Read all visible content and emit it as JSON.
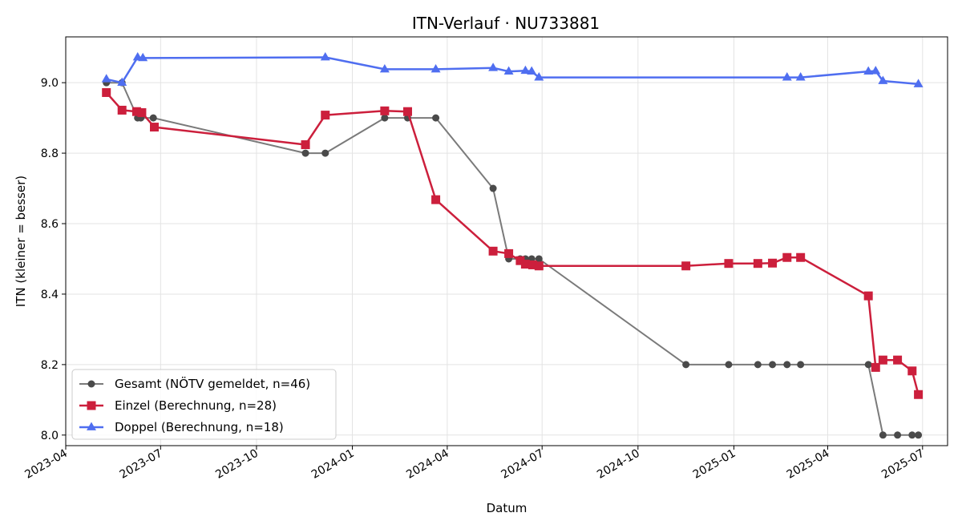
{
  "chart_data": {
    "type": "line",
    "title": "ITN-Verlauf · NU733881",
    "xlabel": "Datum",
    "ylabel": "ITN  (kleiner = besser)",
    "xlim": [
      "2023-04-01",
      "2025-07-25"
    ],
    "ylim": [
      7.97,
      9.13
    ],
    "grid": true,
    "legend_position": "lower-left",
    "x_ticks": [
      "2023-04",
      "2023-07",
      "2023-10",
      "2024-01",
      "2024-04",
      "2024-07",
      "2024-10",
      "2025-01",
      "2025-04",
      "2025-07"
    ],
    "y_ticks": [
      "8.0",
      "8.2",
      "8.4",
      "8.6",
      "8.8",
      "9.0"
    ],
    "series": [
      {
        "name": "Gesamt (NÖTV gemeldet, n=46)",
        "color": "#7a7a7a",
        "marker_color": "#4a4a4a",
        "marker": "circle",
        "points": [
          [
            "2023-05-10",
            9.0
          ],
          [
            "2023-05-25",
            9.0
          ],
          [
            "2023-06-09",
            8.9
          ],
          [
            "2023-06-12",
            8.9
          ],
          [
            "2023-06-24",
            8.9
          ],
          [
            "2023-11-17",
            8.8
          ],
          [
            "2023-12-06",
            8.8
          ],
          [
            "2024-02-01",
            8.9
          ],
          [
            "2024-02-23",
            8.9
          ],
          [
            "2024-03-21",
            8.9
          ],
          [
            "2024-05-15",
            8.7
          ],
          [
            "2024-05-30",
            8.5
          ],
          [
            "2024-06-10",
            8.5
          ],
          [
            "2024-06-15",
            8.5
          ],
          [
            "2024-06-21",
            8.5
          ],
          [
            "2024-06-28",
            8.5
          ],
          [
            "2024-11-16",
            8.2
          ],
          [
            "2024-12-27",
            8.2
          ],
          [
            "2025-01-24",
            8.2
          ],
          [
            "2025-02-07",
            8.2
          ],
          [
            "2025-02-21",
            8.2
          ],
          [
            "2025-03-06",
            8.2
          ],
          [
            "2025-05-10",
            8.2
          ],
          [
            "2025-05-24",
            8.0
          ],
          [
            "2025-06-07",
            8.0
          ],
          [
            "2025-06-21",
            8.0
          ],
          [
            "2025-06-27",
            8.0
          ]
        ]
      },
      {
        "name": "Einzel (Berechnung, n=28)",
        "color": "#cc1f3c",
        "marker_color": "#cc1f3c",
        "marker": "square",
        "points": [
          [
            "2023-05-10",
            8.972
          ],
          [
            "2023-05-25",
            8.922
          ],
          [
            "2023-06-08",
            8.918
          ],
          [
            "2023-06-13",
            8.915
          ],
          [
            "2023-06-25",
            8.874
          ],
          [
            "2023-11-17",
            8.824
          ],
          [
            "2023-12-06",
            8.908
          ],
          [
            "2024-02-01",
            8.92
          ],
          [
            "2024-02-23",
            8.918
          ],
          [
            "2024-03-21",
            8.668
          ],
          [
            "2024-05-15",
            8.522
          ],
          [
            "2024-05-30",
            8.515
          ],
          [
            "2024-06-10",
            8.495
          ],
          [
            "2024-06-15",
            8.485
          ],
          [
            "2024-06-22",
            8.483
          ],
          [
            "2024-06-28",
            8.48
          ],
          [
            "2024-11-16",
            8.48
          ],
          [
            "2024-12-27",
            8.487
          ],
          [
            "2025-01-24",
            8.487
          ],
          [
            "2025-02-07",
            8.488
          ],
          [
            "2025-02-21",
            8.504
          ],
          [
            "2025-03-06",
            8.504
          ],
          [
            "2025-05-10",
            8.395
          ],
          [
            "2025-05-17",
            8.192
          ],
          [
            "2025-05-24",
            8.213
          ],
          [
            "2025-06-07",
            8.213
          ],
          [
            "2025-06-21",
            8.182
          ],
          [
            "2025-06-27",
            8.115
          ]
        ]
      },
      {
        "name": "Doppel (Berechnung, n=18)",
        "color": "#4f6ef0",
        "marker_color": "#4f6ef0",
        "marker": "triangle",
        "points": [
          [
            "2023-05-10",
            9.01
          ],
          [
            "2023-05-25",
            9.0
          ],
          [
            "2023-06-09",
            9.072
          ],
          [
            "2023-06-14",
            9.07
          ],
          [
            "2023-12-06",
            9.072
          ],
          [
            "2024-02-01",
            9.038
          ],
          [
            "2024-03-21",
            9.038
          ],
          [
            "2024-05-15",
            9.042
          ],
          [
            "2024-05-30",
            9.032
          ],
          [
            "2024-06-15",
            9.034
          ],
          [
            "2024-06-21",
            9.032
          ],
          [
            "2024-06-28",
            9.015
          ],
          [
            "2025-02-21",
            9.015
          ],
          [
            "2025-03-06",
            9.015
          ],
          [
            "2025-05-10",
            9.032
          ],
          [
            "2025-05-17",
            9.033
          ],
          [
            "2025-05-24",
            9.005
          ],
          [
            "2025-06-27",
            8.996
          ]
        ]
      }
    ]
  }
}
